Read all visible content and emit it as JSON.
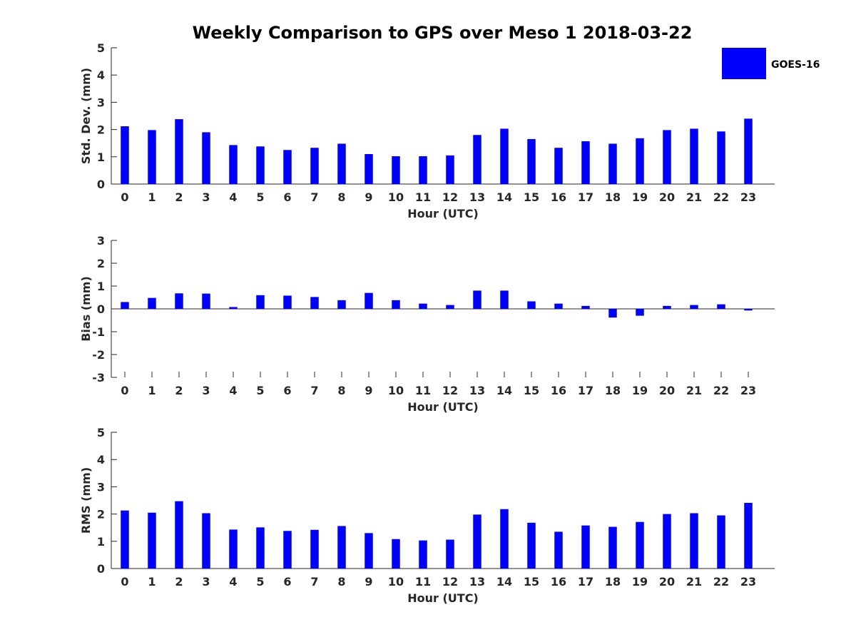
{
  "chart_data": {
    "type": "bar",
    "title": "Weekly Comparison to GPS over Meso 1 2018-03-22",
    "legend": {
      "label": "GOES-16",
      "color": "#0000ff",
      "placement": "top-right"
    },
    "categories": [
      "0",
      "1",
      "2",
      "3",
      "4",
      "5",
      "6",
      "7",
      "8",
      "9",
      "10",
      "11",
      "12",
      "13",
      "14",
      "15",
      "16",
      "17",
      "18",
      "19",
      "20",
      "21",
      "22",
      "23"
    ],
    "panels": [
      {
        "id": "std",
        "ylabel": "Std. Dev. (mm)",
        "xlabel": "Hour (UTC)",
        "ylim": [
          0,
          5
        ],
        "yticks": [
          "0",
          "1",
          "2",
          "3",
          "4",
          "5"
        ],
        "series": [
          {
            "name": "GOES-16",
            "values": [
              2.12,
              1.98,
              2.38,
              1.9,
              1.43,
              1.38,
              1.25,
              1.33,
              1.48,
              1.1,
              1.02,
              1.02,
              1.05,
              1.8,
              2.03,
              1.65,
              1.33,
              1.57,
              1.48,
              1.68,
              1.98,
              2.03,
              1.93,
              2.4
            ]
          }
        ]
      },
      {
        "id": "bias",
        "ylabel": "Bias (mm)",
        "xlabel": "Hour (UTC)",
        "ylim": [
          -3,
          3
        ],
        "yticks": [
          "-3",
          "-2",
          "-1",
          "0",
          "1",
          "2",
          "3"
        ],
        "series": [
          {
            "name": "GOES-16",
            "values": [
              0.3,
              0.48,
              0.68,
              0.67,
              0.08,
              0.6,
              0.58,
              0.52,
              0.38,
              0.7,
              0.38,
              0.23,
              0.17,
              0.8,
              0.8,
              0.33,
              0.23,
              0.13,
              -0.38,
              -0.3,
              0.13,
              0.17,
              0.2,
              -0.07
            ]
          }
        ]
      },
      {
        "id": "rms",
        "ylabel": "RMS (mm)",
        "xlabel": "Hour (UTC)",
        "ylim": [
          0,
          5
        ],
        "yticks": [
          "0",
          "1",
          "2",
          "3",
          "4",
          "5"
        ],
        "series": [
          {
            "name": "GOES-16",
            "values": [
              2.13,
              2.05,
              2.47,
              2.03,
              1.43,
              1.51,
              1.38,
              1.42,
              1.56,
              1.3,
              1.08,
              1.03,
              1.06,
              1.98,
              2.18,
              1.68,
              1.35,
              1.58,
              1.53,
              1.71,
              2.0,
              2.03,
              1.95,
              2.41
            ]
          }
        ]
      }
    ]
  }
}
